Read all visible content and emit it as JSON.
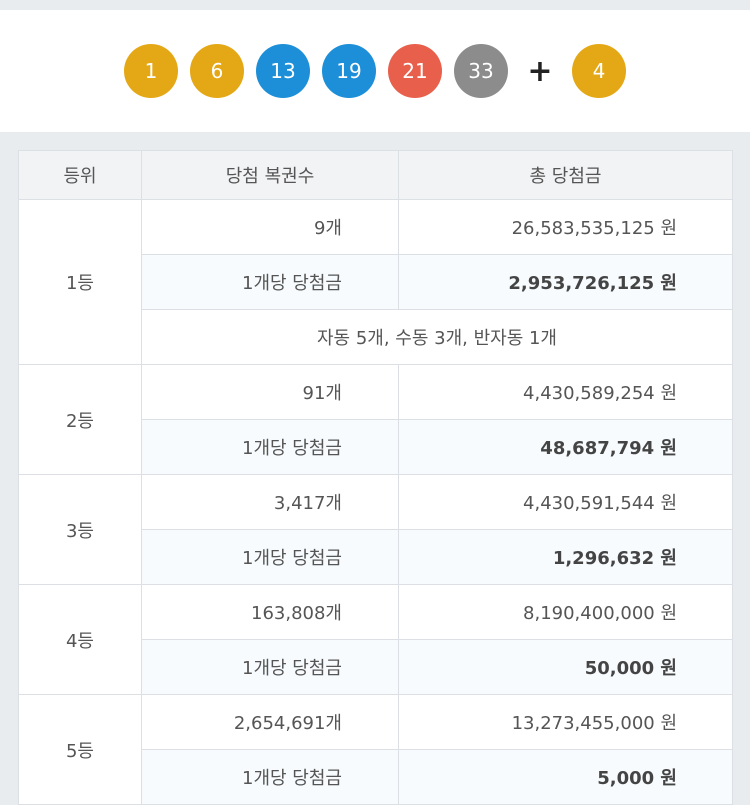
{
  "winning_numbers": [
    {
      "value": "1",
      "color": "#e4a816"
    },
    {
      "value": "6",
      "color": "#e4a816"
    },
    {
      "value": "13",
      "color": "#1d8fd8"
    },
    {
      "value": "19",
      "color": "#1d8fd8"
    },
    {
      "value": "21",
      "color": "#e8604c"
    },
    {
      "value": "33",
      "color": "#8c8c8c"
    }
  ],
  "plus_sign": "+",
  "bonus_number": {
    "value": "4",
    "color": "#e4a816"
  },
  "table": {
    "headers": {
      "rank": "등위",
      "winners": "당첨 복권수",
      "total": "총 당첨금"
    },
    "per_winner_label": "1개당 당첨금",
    "rows": [
      {
        "rank": "1등",
        "winners": "9개",
        "total": "26,583,535,125 원",
        "per_winner": "2,953,726,125 원",
        "note": "자동 5개, 수동 3개, 반자동 1개"
      },
      {
        "rank": "2등",
        "winners": "91개",
        "total": "4,430,589,254 원",
        "per_winner": "48,687,794 원"
      },
      {
        "rank": "3등",
        "winners": "3,417개",
        "total": "4,430,591,544 원",
        "per_winner": "1,296,632 원"
      },
      {
        "rank": "4등",
        "winners": "163,808개",
        "total": "8,190,400,000 원",
        "per_winner": "50,000 원"
      },
      {
        "rank": "5등",
        "winners": "2,654,691개",
        "total": "13,273,455,000 원",
        "per_winner": "5,000 원"
      }
    ]
  }
}
